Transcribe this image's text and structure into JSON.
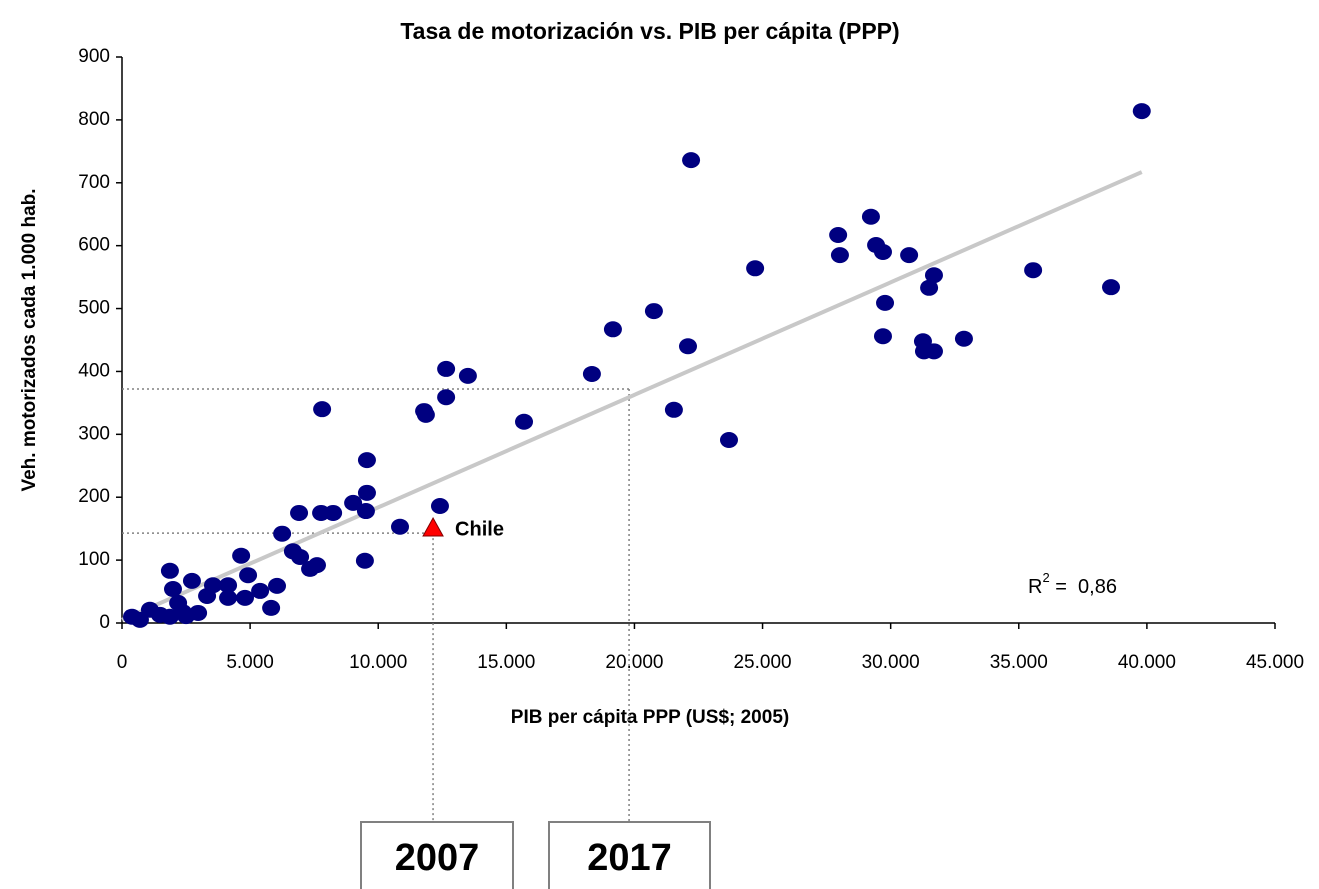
{
  "chart_data": {
    "type": "scatter",
    "title": "Tasa de motorización vs. PIB per cápita (PPP)",
    "x_label": "PIB per cápita PPP (US$; 2005)",
    "y_label": "Veh. motorizados cada 1.000 hab.",
    "xlim": [
      0,
      45000
    ],
    "ylim": [
      0,
      900
    ],
    "xticks": [
      0,
      {
        "value": 5000,
        "label": "5.000"
      },
      {
        "value": 10000,
        "label": "10.000"
      },
      {
        "value": 15000,
        "label": "15.000"
      },
      {
        "value": 20000,
        "label": "20.000"
      },
      {
        "value": 25000,
        "label": "25.000"
      },
      {
        "value": 30000,
        "label": "30.000"
      },
      {
        "value": 35000,
        "label": "35.000"
      },
      {
        "value": 40000,
        "label": "40.000"
      },
      {
        "value": 45000,
        "label": "45.000"
      }
    ],
    "yticks": [
      0,
      100,
      200,
      300,
      400,
      500,
      600,
      700,
      800,
      900
    ],
    "series": [
      {
        "color": "#000080",
        "x": [
          39800,
          22210,
          29230,
          27950,
          29430,
          28020,
          29700,
          30720,
          24710,
          35560,
          31690,
          31500,
          38600,
          29780,
          20760,
          19160,
          29700,
          31260,
          32860,
          31300,
          31690,
          22090,
          12650,
          13500,
          18340,
          12650,
          7810,
          11790,
          11860,
          21540,
          15690,
          23690,
          9560,
          9560,
          12410,
          9020,
          9520,
          6910,
          7770,
          8240,
          10850,
          6250,
          6670,
          6950,
          4650,
          9480,
          7610,
          7340,
          4920,
          1870,
          6050,
          3550,
          4140,
          2730,
          1990,
          5390,
          3320,
          4140,
          4800,
          2190,
          5820,
          1090,
          2380,
          2970,
          1480,
          1870,
          390,
          700,
          2500
        ],
        "values": [
          814,
          736,
          646,
          617,
          601,
          585,
          590,
          585,
          564,
          561,
          553,
          533,
          534,
          509,
          496,
          467,
          456,
          448,
          452,
          432,
          432,
          440,
          404,
          393,
          396,
          359,
          340,
          337,
          331,
          339,
          320,
          291,
          259,
          207,
          186,
          191,
          178,
          175,
          175,
          175,
          153,
          142,
          114,
          105,
          107,
          99,
          92,
          86,
          76,
          83,
          59,
          60,
          60,
          67,
          54,
          51,
          43,
          40,
          40,
          32,
          24,
          21,
          17,
          16,
          13,
          10,
          10,
          5,
          11
        ]
      },
      {
        "name": "Chile",
        "color": "#ff0000",
        "x": [
          12140
        ],
        "values": [
          151
        ]
      }
    ],
    "trendline": {
      "color": "#c8c8c8",
      "x": [
        0,
        39800
      ],
      "values": [
        5,
        717
      ]
    },
    "r2": {
      "base": "R",
      "sup": "2",
      "text": " =  0,86"
    },
    "projections": [
      {
        "label": "2007",
        "x": 12140,
        "y": 143
      },
      {
        "label": "2017",
        "x": 19790,
        "y": 372
      }
    ]
  }
}
